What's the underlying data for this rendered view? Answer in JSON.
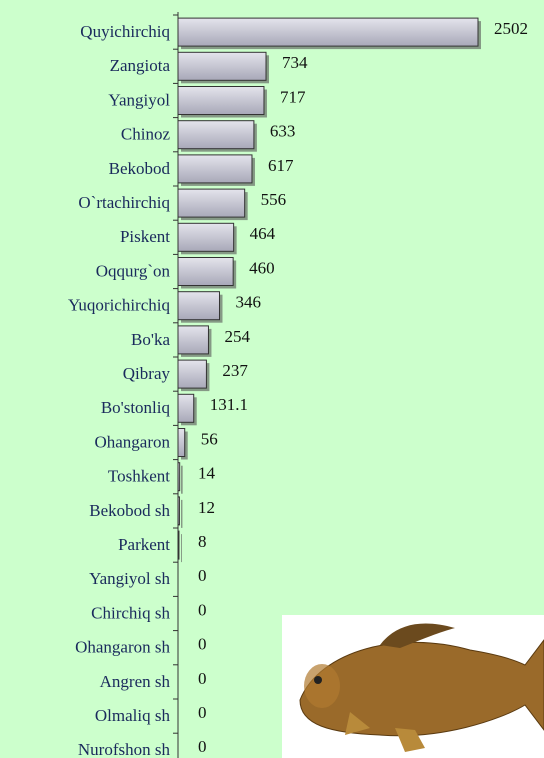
{
  "chart_data": {
    "type": "barh",
    "categories": [
      "Quyichirchiq",
      "Zangiota",
      "Yangiyol",
      "Chinoz",
      "Bekobod",
      "O`rtachirchiq",
      "Piskent",
      "Oqqurg`on",
      "Yuqorichirchiq",
      "Bo'ka",
      "Qibray",
      "Bo'stonliq",
      "Ohangaron",
      "Toshkent",
      "Bekobod sh",
      "Parkent",
      "Yangiyol sh",
      "Chirchiq sh",
      "Ohangaron sh",
      "Angren sh",
      "Olmaliq sh",
      "Nurofshon sh"
    ],
    "values": [
      2502,
      734,
      717,
      633,
      617,
      556,
      464,
      460,
      346,
      254,
      237,
      131.1,
      56,
      14,
      12,
      8,
      0,
      0,
      0,
      0,
      0,
      0
    ],
    "color": "#c4c4d0"
  }
}
